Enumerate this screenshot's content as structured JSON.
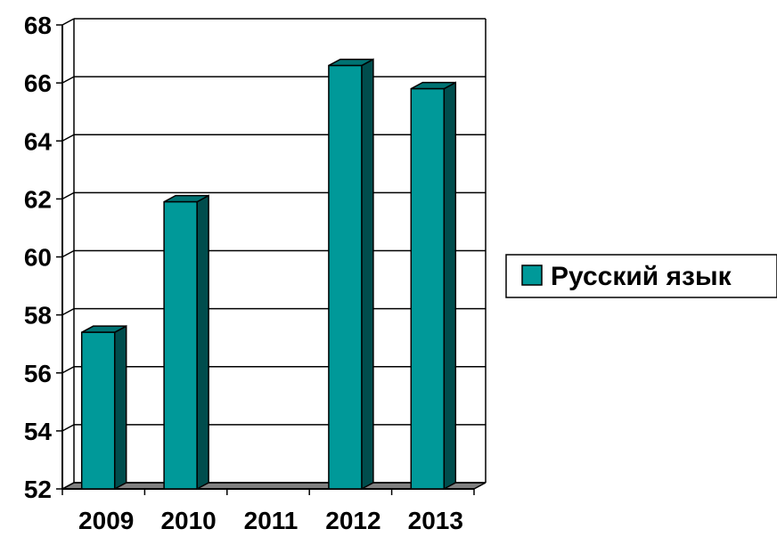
{
  "chart_data": {
    "type": "bar",
    "categories": [
      "2009",
      "2010",
      "2011",
      "2012",
      "2013"
    ],
    "series": [
      {
        "name": "Русский язык",
        "values": [
          57.4,
          61.9,
          null,
          66.6,
          65.8
        ],
        "color": "#009999"
      }
    ],
    "y_ticks": [
      "52",
      "54",
      "56",
      "58",
      "60",
      "62",
      "64",
      "66",
      "68"
    ],
    "ylim": [
      52,
      68
    ],
    "grid": true,
    "legend": "right",
    "style": "3d-bar"
  }
}
